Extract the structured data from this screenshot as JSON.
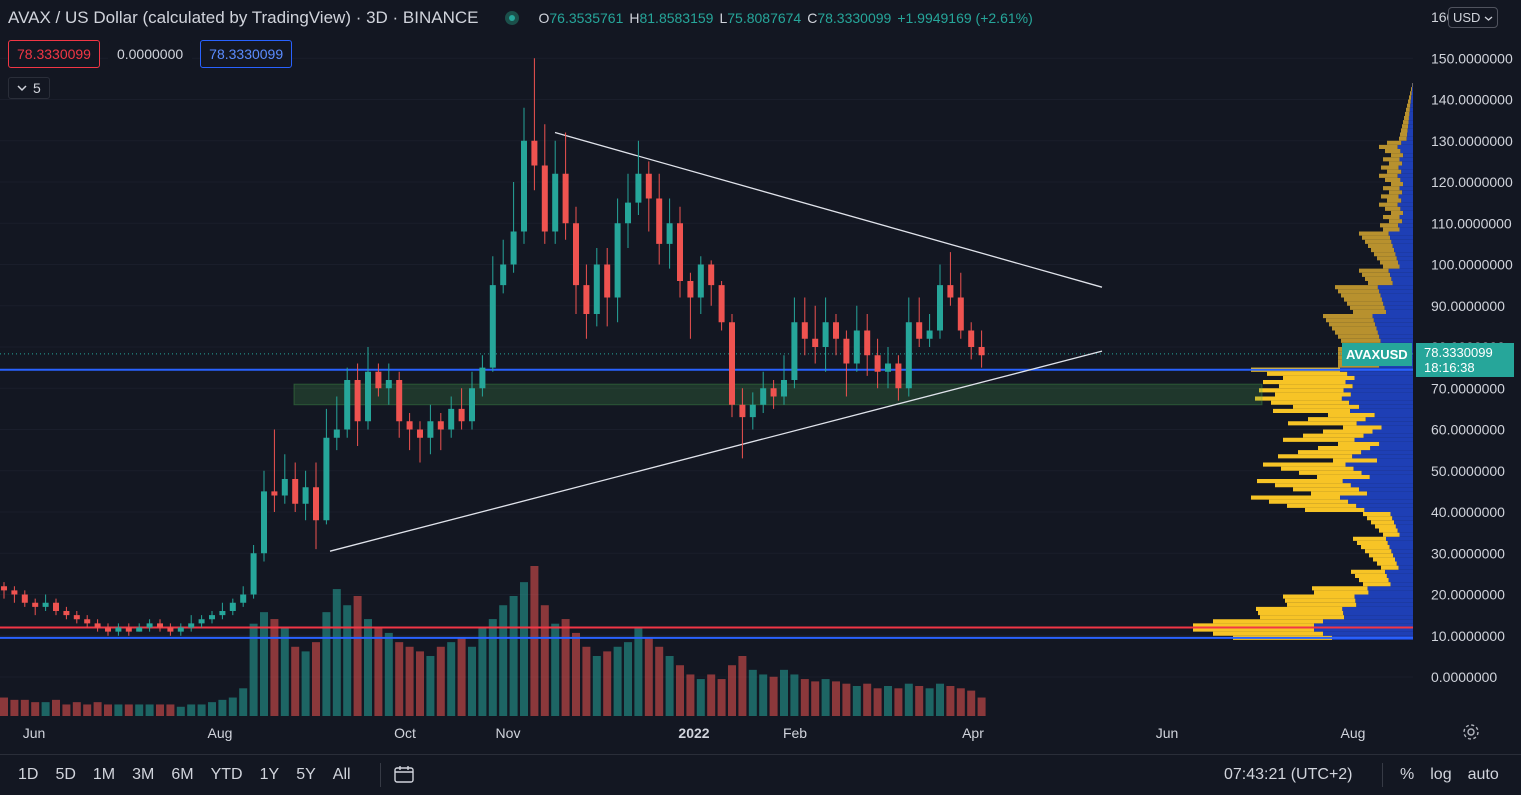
{
  "header": {
    "title": "AVAX / US Dollar (calculated by TradingView) · 3D · BINANCE",
    "ohlc": {
      "o_label": "O",
      "o": "76.3535761",
      "h_label": "H",
      "h": "81.8583159",
      "l_label": "L",
      "l": "75.8087674",
      "c_label": "C",
      "c": "78.3330099",
      "change": "+1.9949169 (+2.61%)"
    },
    "input_1": "78.3330099",
    "input_2": "0.0000000",
    "input_3": "78.3330099",
    "indicator_count": "5",
    "currency": "USD"
  },
  "price_tag": {
    "symbol": "AVAXUSD",
    "price": "78.3330099",
    "countdown": "18:16:38"
  },
  "toolbar": {
    "ranges": [
      "1D",
      "5D",
      "1M",
      "3M",
      "6M",
      "YTD",
      "1Y",
      "5Y",
      "All"
    ],
    "time": "07:43:21 (UTC+2)",
    "percent": "%",
    "log": "log",
    "auto": "auto"
  },
  "colors": {
    "up": "#26a69a",
    "down": "#ef5350",
    "background": "#131722",
    "blue_line": "#2962ff",
    "red_line": "#f23645",
    "profile_gold": "#b8912e",
    "profile_yellow": "#f7c426",
    "profile_blue": "#1e3fb5"
  },
  "chart_data": {
    "type": "candlestick",
    "ylim": [
      -10,
      160
    ],
    "y_ticks": [
      "160",
      "150.0000000",
      "140.0000000",
      "130.0000000",
      "120.0000000",
      "110.0000000",
      "100.0000000",
      "90.0000000",
      "80.0000000",
      "70.0000000",
      "60.0000000",
      "50.0000000",
      "40.0000000",
      "30.0000000",
      "20.0000000",
      "10.0000000",
      "0.0000000"
    ],
    "x_ticks": [
      "Jun",
      "Aug",
      "Oct",
      "Nov",
      "2022",
      "Feb",
      "Apr",
      "Jun",
      "Aug"
    ],
    "candles": [
      [
        22,
        21,
        23,
        19
      ],
      [
        21,
        20,
        22,
        18
      ],
      [
        20,
        18,
        21,
        17
      ],
      [
        18,
        17,
        19,
        15
      ],
      [
        17,
        18,
        20,
        16
      ],
      [
        18,
        16,
        19,
        15
      ],
      [
        16,
        15,
        17,
        14
      ],
      [
        15,
        14,
        16,
        13
      ],
      [
        14,
        13,
        15,
        12
      ],
      [
        13,
        12,
        14,
        11
      ],
      [
        12,
        11,
        13,
        10
      ],
      [
        11,
        12,
        13,
        10
      ],
      [
        12,
        11,
        13,
        10
      ],
      [
        11,
        12,
        13,
        11
      ],
      [
        12,
        13,
        14,
        11
      ],
      [
        13,
        12,
        14,
        11
      ],
      [
        12,
        11,
        13,
        10
      ],
      [
        11,
        12,
        13,
        10
      ],
      [
        12,
        13,
        15,
        11
      ],
      [
        13,
        14,
        15,
        12
      ],
      [
        14,
        15,
        16,
        13
      ],
      [
        15,
        16,
        18,
        14
      ],
      [
        16,
        18,
        19,
        15
      ],
      [
        18,
        20,
        22,
        17
      ],
      [
        20,
        30,
        32,
        19
      ],
      [
        30,
        45,
        50,
        28
      ],
      [
        45,
        44,
        60,
        40
      ],
      [
        44,
        48,
        54,
        42
      ],
      [
        48,
        42,
        52,
        40
      ],
      [
        42,
        46,
        50,
        38
      ],
      [
        46,
        38,
        52,
        31
      ],
      [
        38,
        58,
        65,
        37
      ],
      [
        58,
        60,
        68,
        55
      ],
      [
        60,
        72,
        75,
        58
      ],
      [
        72,
        62,
        76,
        56
      ],
      [
        62,
        74,
        80,
        60
      ],
      [
        74,
        70,
        76,
        68
      ],
      [
        70,
        72,
        76,
        66
      ],
      [
        72,
        62,
        74,
        58
      ],
      [
        62,
        60,
        64,
        55
      ],
      [
        60,
        58,
        62,
        52
      ],
      [
        58,
        62,
        66,
        54
      ],
      [
        62,
        60,
        64,
        55
      ],
      [
        60,
        65,
        68,
        58
      ],
      [
        65,
        62,
        70,
        60
      ],
      [
        62,
        70,
        74,
        60
      ],
      [
        70,
        75,
        78,
        68
      ],
      [
        75,
        95,
        102,
        74
      ],
      [
        95,
        100,
        106,
        93
      ],
      [
        100,
        108,
        120,
        98
      ],
      [
        108,
        130,
        138,
        105
      ],
      [
        130,
        124,
        150,
        118
      ],
      [
        124,
        108,
        134,
        105
      ],
      [
        108,
        122,
        130,
        105
      ],
      [
        122,
        110,
        132,
        106
      ],
      [
        110,
        95,
        114,
        88
      ],
      [
        95,
        88,
        100,
        82
      ],
      [
        88,
        100,
        104,
        85
      ],
      [
        100,
        92,
        104,
        85
      ],
      [
        92,
        110,
        116,
        86
      ],
      [
        110,
        115,
        122,
        104
      ],
      [
        115,
        122,
        130,
        112
      ],
      [
        122,
        116,
        125,
        108
      ],
      [
        116,
        105,
        122,
        100
      ],
      [
        105,
        110,
        116,
        99
      ],
      [
        110,
        96,
        114,
        92
      ],
      [
        96,
        92,
        98,
        82
      ],
      [
        92,
        100,
        102,
        88
      ],
      [
        100,
        95,
        101,
        90
      ],
      [
        95,
        86,
        96,
        84
      ],
      [
        86,
        66,
        88,
        63
      ],
      [
        66,
        63,
        70,
        53
      ],
      [
        63,
        66,
        69,
        60
      ],
      [
        66,
        70,
        74,
        64
      ],
      [
        70,
        68,
        72,
        65
      ],
      [
        68,
        72,
        78,
        66
      ],
      [
        72,
        86,
        92,
        70
      ],
      [
        86,
        82,
        92,
        78
      ],
      [
        82,
        80,
        90,
        76
      ],
      [
        80,
        86,
        92,
        74
      ],
      [
        86,
        82,
        88,
        78
      ],
      [
        82,
        76,
        84,
        68
      ],
      [
        76,
        84,
        90,
        74
      ],
      [
        84,
        78,
        88,
        73
      ],
      [
        78,
        74,
        82,
        70
      ],
      [
        74,
        76,
        80,
        70
      ],
      [
        76,
        70,
        78,
        67
      ],
      [
        70,
        86,
        92,
        68
      ],
      [
        86,
        82,
        92,
        80
      ],
      [
        82,
        84,
        88,
        80
      ],
      [
        84,
        95,
        100,
        82
      ],
      [
        95,
        92,
        103,
        90
      ],
      [
        92,
        84,
        98,
        82
      ],
      [
        84,
        80,
        86,
        77
      ],
      [
        80,
        78,
        84,
        75
      ]
    ],
    "volume": [
      8,
      7,
      7,
      6,
      6,
      7,
      5,
      6,
      5,
      6,
      5,
      5,
      5,
      5,
      5,
      5,
      5,
      4,
      5,
      5,
      6,
      7,
      8,
      12,
      40,
      45,
      42,
      38,
      30,
      28,
      32,
      45,
      55,
      48,
      52,
      42,
      38,
      36,
      32,
      30,
      28,
      26,
      30,
      32,
      34,
      30,
      38,
      42,
      48,
      52,
      58,
      65,
      48,
      40,
      42,
      36,
      30,
      26,
      28,
      30,
      32,
      38,
      34,
      30,
      26,
      22,
      18,
      16,
      18,
      16,
      22,
      26,
      20,
      18,
      17,
      20,
      18,
      16,
      15,
      16,
      15,
      14,
      13,
      14,
      12,
      13,
      12,
      14,
      13,
      12,
      14,
      13,
      12,
      11,
      8
    ],
    "trendlines": [
      {
        "name": "upper",
        "from": [
          0,
          132
        ],
        "to": [
          1,
          95
        ]
      },
      {
        "name": "lower",
        "from": [
          0,
          31
        ],
        "to": [
          1,
          79
        ]
      }
    ],
    "horizontal_lines": [
      {
        "name": "blue-upper",
        "value": 74.5
      },
      {
        "name": "red",
        "value": 12.0
      },
      {
        "name": "blue-lower",
        "value": 9.5
      }
    ],
    "zone": {
      "from": 66,
      "to": 71
    }
  }
}
